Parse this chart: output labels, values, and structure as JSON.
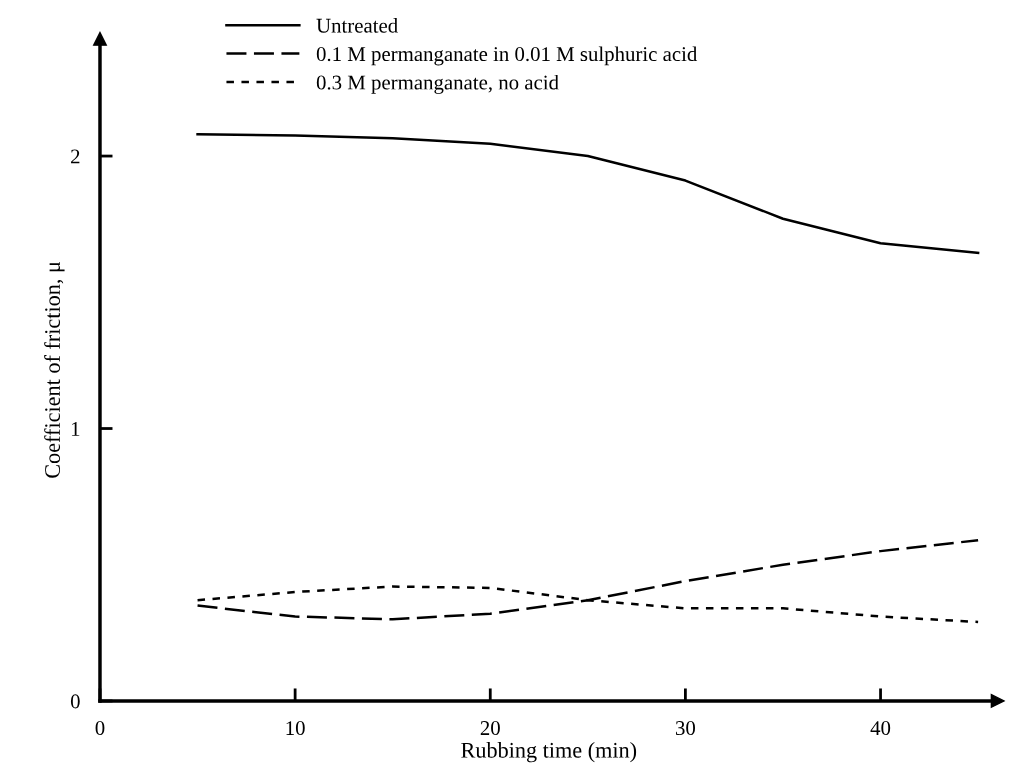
{
  "chart_data": {
    "type": "line",
    "xlabel": "Rubbing time (min)",
    "ylabel": "Coefficient of friction, μ",
    "x": [
      5,
      10,
      15,
      20,
      25,
      30,
      35,
      40,
      45
    ],
    "series": [
      {
        "name": "Untreated",
        "color": "#000000",
        "line_style": "solid",
        "values": [
          2.08,
          2.075,
          2.065,
          2.045,
          2.0,
          1.91,
          1.77,
          1.68,
          1.645
        ]
      },
      {
        "name": "0.1 M permanganate in 0.01 M sulphuric acid",
        "color": "#000000",
        "line_style": "dashed",
        "values": [
          0.35,
          0.31,
          0.3,
          0.32,
          0.37,
          0.44,
          0.5,
          0.55,
          0.59
        ]
      },
      {
        "name": "0.3 M permanganate, no acid",
        "color": "#000000",
        "line_style": "dotted",
        "values": [
          0.37,
          0.4,
          0.42,
          0.415,
          0.37,
          0.34,
          0.34,
          0.31,
          0.29
        ]
      }
    ],
    "xlim": [
      0,
      46
    ],
    "ylim": [
      0,
      2.43
    ],
    "xticks": [
      0,
      10,
      20,
      30,
      40
    ],
    "yticks": [
      0,
      1,
      2
    ],
    "grid": false,
    "legend": "top left",
    "marker": "none"
  }
}
